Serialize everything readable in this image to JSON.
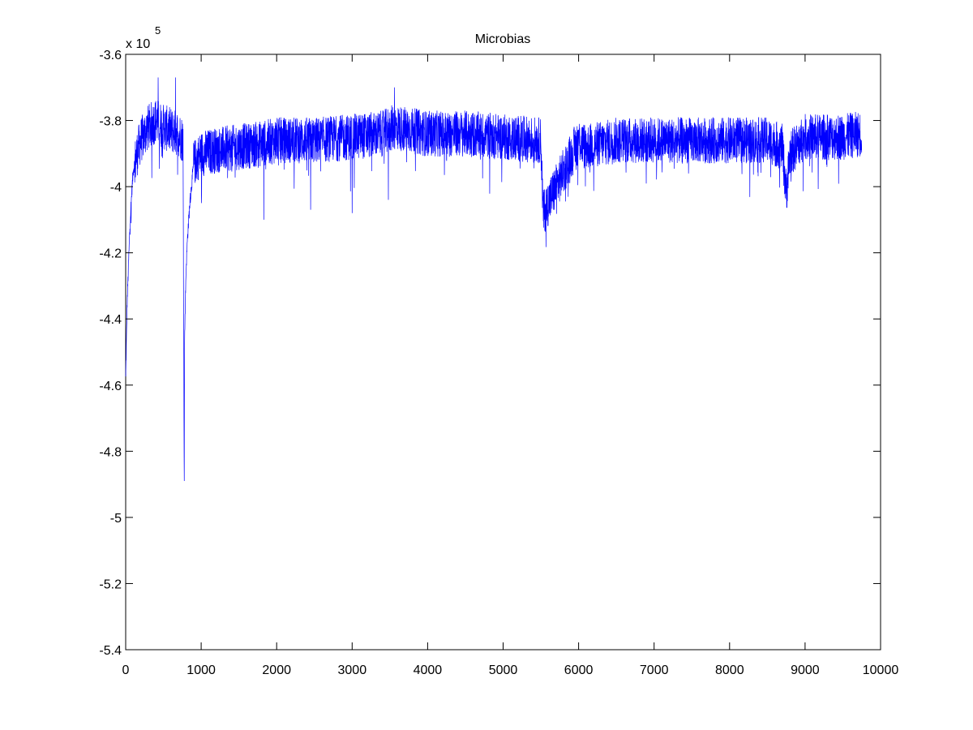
{
  "chart_data": {
    "type": "line",
    "title": "Microbias",
    "xlabel": "",
    "ylabel": "",
    "y_multiplier_base": "x 10",
    "y_multiplier_exponent": "5",
    "xlim": [
      0,
      10000
    ],
    "ylim": [
      -5.4,
      -3.6
    ],
    "x_ticks": [
      0,
      1000,
      2000,
      3000,
      4000,
      5000,
      6000,
      7000,
      8000,
      9000,
      10000
    ],
    "x_tick_labels": [
      "0",
      "1000",
      "2000",
      "3000",
      "4000",
      "5000",
      "6000",
      "7000",
      "8000",
      "9000",
      "10000"
    ],
    "y_ticks": [
      -5.4,
      -5.2,
      -5.0,
      -4.8,
      -4.6,
      -4.4,
      -4.2,
      -4.0,
      -3.8,
      -3.6
    ],
    "y_tick_labels": [
      "-5.4",
      "-5.2",
      "-5",
      "-4.8",
      "-4.6",
      "-4.4",
      "-4.2",
      "-4",
      "-3.8",
      "-3.6"
    ],
    "grid": false,
    "line_color": "#0000ff",
    "series": [
      {
        "x": [
          0,
          20,
          40,
          60,
          80,
          100,
          150,
          200,
          300,
          400,
          500,
          600,
          700,
          760,
          775,
          780,
          790,
          800,
          820,
          850,
          880,
          900,
          1000,
          1200,
          1500,
          1800,
          2000,
          2500,
          3000,
          3400,
          3550,
          4000,
          4500,
          5000,
          5500,
          5530,
          6000,
          6100,
          6500,
          7000,
          7500,
          8000,
          8500,
          8700,
          8750,
          8800,
          9000,
          9500,
          9750
        ],
        "values": [
          -4.58,
          -4.35,
          -4.22,
          -4.1,
          -4.02,
          -3.95,
          -3.9,
          -3.86,
          -3.82,
          -3.8,
          -3.82,
          -3.83,
          -3.84,
          -3.86,
          -4.89,
          -4.47,
          -4.35,
          -4.25,
          -4.15,
          -4.05,
          -3.98,
          -3.93,
          -3.9,
          -3.89,
          -3.88,
          -3.87,
          -3.86,
          -3.86,
          -3.85,
          -3.84,
          -3.82,
          -3.84,
          -3.84,
          -3.85,
          -3.86,
          -4.08,
          -3.86,
          -3.88,
          -3.86,
          -3.86,
          -3.86,
          -3.86,
          -3.86,
          -3.88,
          -4.02,
          -3.9,
          -3.85,
          -3.85,
          -3.84
        ],
        "noise_amplitude": 0.07,
        "min_envelope_dips": [
          [
            1830,
            -4.1
          ],
          [
            2450,
            -4.07
          ],
          [
            3000,
            -4.08
          ],
          [
            3480,
            -4.04
          ]
        ],
        "max_envelope_peaks": [
          [
            430,
            -3.67
          ],
          [
            660,
            -3.67
          ],
          [
            3560,
            -3.7
          ]
        ]
      }
    ]
  }
}
